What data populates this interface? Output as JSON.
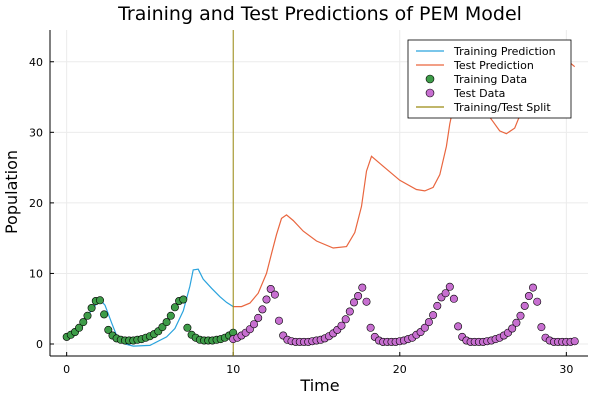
{
  "chart_data": {
    "type": "scatter",
    "title": "Training and Test Predictions of PEM Model",
    "xlabel": "Time",
    "ylabel": "Population",
    "xlim": [
      -1,
      31.3
    ],
    "ylim": [
      -1.7,
      44.5
    ],
    "xticks": [
      "0",
      "10",
      "20",
      "30"
    ],
    "yticks": [
      "0",
      "10",
      "20",
      "30",
      "40"
    ],
    "grid": true,
    "legend_position": "top-right",
    "split_x": 10,
    "legend": [
      "Training Prediction",
      "Test Prediction",
      "Training Data",
      "Test Data",
      "Training/Test Split"
    ],
    "colors": {
      "training_prediction": "#2aa3dd",
      "test_prediction": "#e9663f",
      "training_data": "#3e9c48",
      "test_data": "#c76fd0",
      "split": "#9a8a10"
    },
    "series": [
      {
        "name": "Training Prediction",
        "kind": "line",
        "x": [
          0,
          0.5,
          1,
          1.5,
          2,
          2.3,
          2.7,
          3,
          3.5,
          4,
          5,
          6,
          6.5,
          7,
          7.4,
          7.6,
          7.9,
          8.2,
          8.7,
          9.2,
          9.6,
          10
        ],
        "y": [
          1.0,
          1.7,
          3.0,
          4.8,
          6.3,
          5.5,
          3.0,
          1.2,
          0.0,
          -0.3,
          -0.2,
          1.0,
          2.2,
          4.7,
          8.2,
          10.5,
          10.6,
          9.2,
          7.9,
          6.7,
          5.9,
          5.3
        ]
      },
      {
        "name": "Test Prediction",
        "kind": "line",
        "x": [
          10,
          10.5,
          11,
          11.5,
          12,
          12.3,
          12.6,
          12.9,
          13.2,
          13.6,
          14.2,
          15,
          16,
          16.8,
          17.3,
          17.7,
          18,
          18.3,
          19,
          20,
          21,
          21.5,
          22,
          22.4,
          22.8,
          23,
          23.3,
          23.6,
          24.3,
          25,
          25.6,
          26,
          26.4,
          26.9,
          27.4,
          27.9,
          28.3,
          28.6,
          28.9,
          29.3,
          30,
          30.5
        ],
        "y": [
          5.3,
          5.3,
          5.8,
          7.2,
          10.0,
          12.8,
          15.5,
          17.8,
          18.3,
          17.5,
          16.0,
          14.6,
          13.6,
          13.8,
          15.8,
          19.5,
          24.5,
          26.6,
          25.2,
          23.2,
          21.9,
          21.7,
          22.2,
          24.0,
          28.0,
          31.2,
          34.5,
          36.6,
          35.2,
          33.4,
          31.5,
          30.2,
          29.8,
          30.6,
          33.5,
          37.5,
          41.5,
          42.5,
          43.0,
          42.0,
          40.3,
          39.3
        ]
      },
      {
        "name": "Training Data",
        "kind": "points",
        "x": [
          0,
          0.25,
          0.5,
          0.75,
          1,
          1.25,
          1.5,
          1.75,
          2,
          2.25,
          2.5,
          2.75,
          3,
          3.25,
          3.5,
          3.75,
          4,
          4.25,
          4.5,
          4.75,
          5,
          5.25,
          5.5,
          5.75,
          6,
          6.25,
          6.5,
          6.75,
          7,
          7.25,
          7.5,
          7.75,
          8,
          8.25,
          8.5,
          8.75,
          9,
          9.25,
          9.5,
          9.75,
          10
        ],
        "y": [
          1.0,
          1.3,
          1.7,
          2.3,
          3.1,
          4.0,
          5.1,
          6.1,
          6.2,
          4.2,
          2.0,
          1.2,
          0.8,
          0.6,
          0.5,
          0.5,
          0.5,
          0.6,
          0.7,
          0.9,
          1.1,
          1.4,
          1.8,
          2.4,
          3.1,
          4.0,
          5.2,
          6.1,
          6.3,
          2.3,
          1.3,
          0.9,
          0.6,
          0.5,
          0.5,
          0.5,
          0.6,
          0.7,
          0.9,
          1.2,
          1.6
        ]
      },
      {
        "name": "Test Data",
        "kind": "points",
        "x": [
          10,
          10.25,
          10.5,
          10.75,
          11,
          11.25,
          11.5,
          11.75,
          12,
          12.25,
          12.5,
          12.75,
          13,
          13.25,
          13.5,
          13.75,
          14,
          14.25,
          14.5,
          14.75,
          15,
          15.25,
          15.5,
          15.75,
          16,
          16.25,
          16.5,
          16.75,
          17,
          17.25,
          17.5,
          17.75,
          18,
          18.25,
          18.5,
          18.75,
          19,
          19.25,
          19.5,
          19.75,
          20,
          20.25,
          20.5,
          20.75,
          21,
          21.25,
          21.5,
          21.75,
          22,
          22.25,
          22.5,
          22.75,
          23,
          23.25,
          23.5,
          23.75,
          24,
          24.25,
          24.5,
          24.75,
          25,
          25.25,
          25.5,
          25.75,
          26,
          26.25,
          26.5,
          26.75,
          27,
          27.25,
          27.5,
          27.75,
          28,
          28.25,
          28.5,
          28.75,
          29,
          29.25,
          29.5,
          29.75,
          30,
          30.25,
          30.5
        ],
        "y": [
          0.7,
          0.9,
          1.2,
          1.6,
          2.1,
          2.8,
          3.7,
          4.9,
          6.3,
          7.8,
          7.0,
          3.3,
          1.2,
          0.6,
          0.4,
          0.3,
          0.3,
          0.3,
          0.3,
          0.4,
          0.5,
          0.6,
          0.8,
          1.1,
          1.5,
          2.0,
          2.6,
          3.5,
          4.6,
          5.9,
          6.8,
          8.0,
          6.0,
          2.3,
          1.0,
          0.5,
          0.3,
          0.3,
          0.3,
          0.3,
          0.4,
          0.5,
          0.7,
          0.9,
          1.3,
          1.7,
          2.3,
          3.1,
          4.1,
          5.4,
          6.6,
          7.2,
          8.1,
          6.4,
          2.5,
          1.0,
          0.5,
          0.3,
          0.3,
          0.3,
          0.3,
          0.4,
          0.5,
          0.7,
          0.9,
          1.2,
          1.6,
          2.2,
          3.0,
          4.0,
          5.4,
          6.8,
          8.0,
          6.0,
          2.4,
          0.9,
          0.5,
          0.3,
          0.3,
          0.3,
          0.3,
          0.3,
          0.4
        ]
      }
    ]
  }
}
